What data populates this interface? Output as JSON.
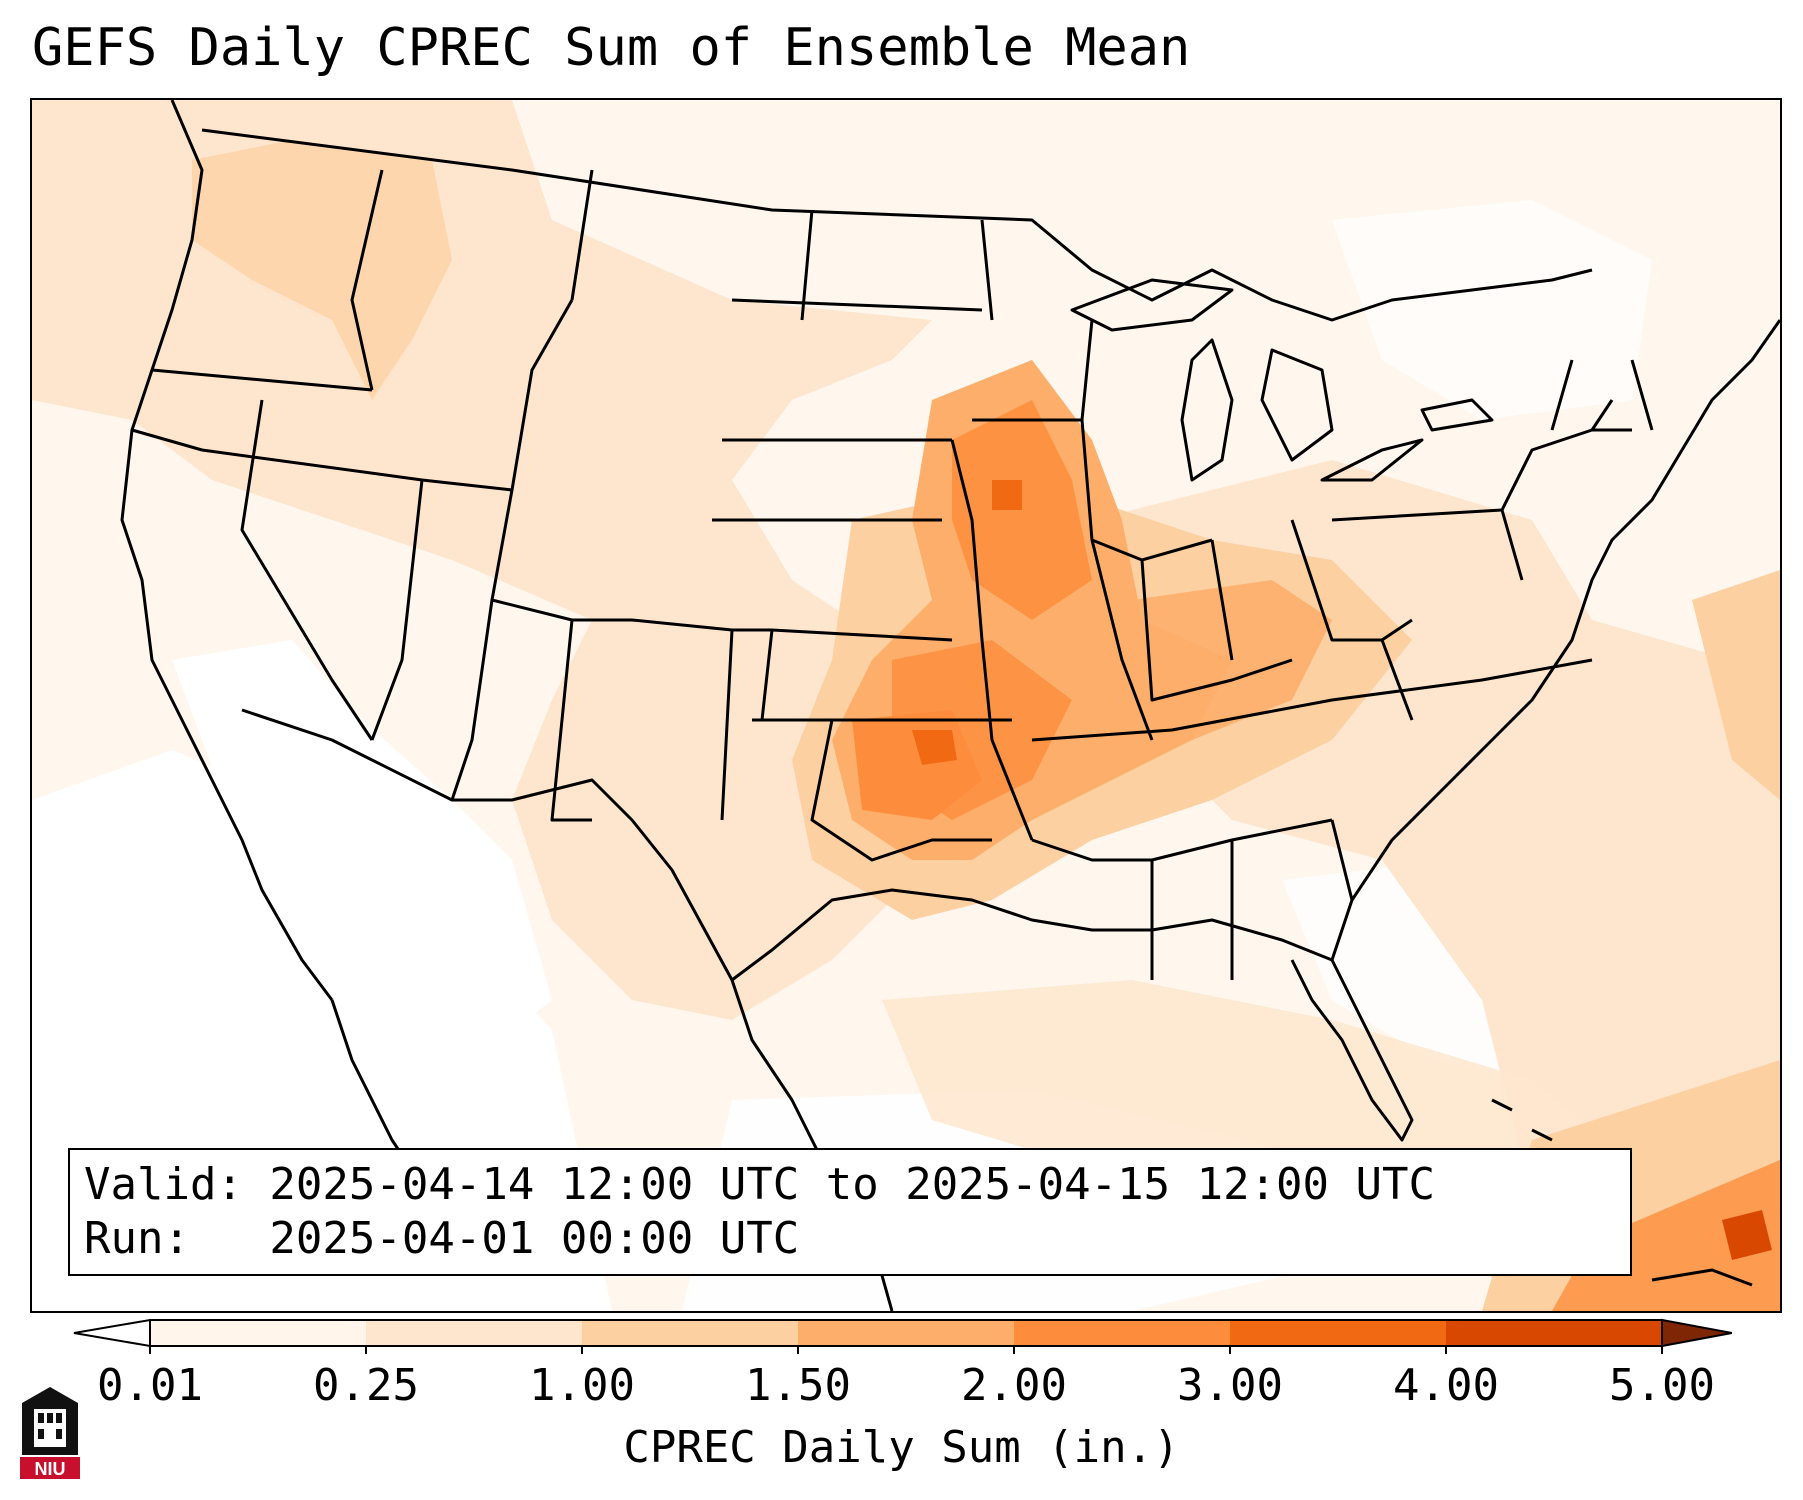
{
  "title": "GEFS Daily CPREC Sum of Ensemble Mean",
  "info": {
    "valid_line": "Valid: 2025-04-14 12:00 UTC to 2025-04-15 12:00 UTC",
    "run_line": "Run:   2025-04-01 00:00 UTC"
  },
  "colorbar": {
    "label": "CPREC Daily Sum (in.)",
    "ticks": [
      "0.01",
      "0.25",
      "1.00",
      "1.50",
      "2.00",
      "3.00",
      "4.00",
      "5.00"
    ],
    "colors": [
      "#fff5eb",
      "#fee6ce",
      "#fdd0a2",
      "#fdae6b",
      "#fd8d3c",
      "#f16913",
      "#d94801",
      "#8c2d04"
    ],
    "under_color": "#ffffff",
    "over_color": "#7f2704"
  },
  "logo": {
    "text": "NIU"
  },
  "map": {
    "projection": "lambert-conformal",
    "region": "contiguous-united-states",
    "max_precip_region": "central-plains-to-ohio-valley"
  }
}
